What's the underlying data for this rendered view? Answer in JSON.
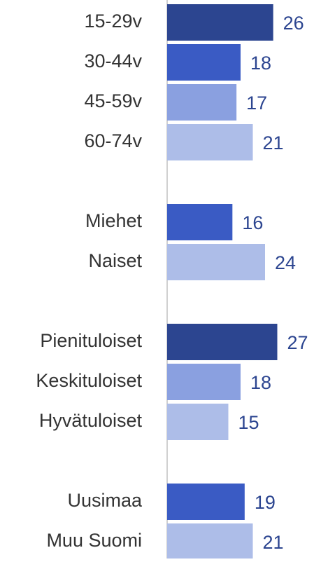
{
  "chart_data": {
    "type": "hbar",
    "categories": [
      "15-29v",
      "30-44v",
      "45-59v",
      "60-74v",
      null,
      "Miehet",
      "Naiset",
      null,
      "Pienituloiset",
      "Keskituloiset",
      "Hyvätuloiset",
      null,
      "Uusimaa",
      "Muu Suomi"
    ],
    "values": [
      26,
      18,
      17,
      21,
      null,
      16,
      24,
      null,
      27,
      18,
      15,
      null,
      19,
      21
    ],
    "colors": [
      "#2c4590",
      "#3a5bc4",
      "#8aa0e0",
      "#adbde8",
      null,
      "#3a5bc4",
      "#adbde8",
      null,
      "#2c4590",
      "#8aa0e0",
      "#adbde8",
      null,
      "#3a5bc4",
      "#adbde8"
    ],
    "xlim": [
      0,
      36
    ]
  }
}
